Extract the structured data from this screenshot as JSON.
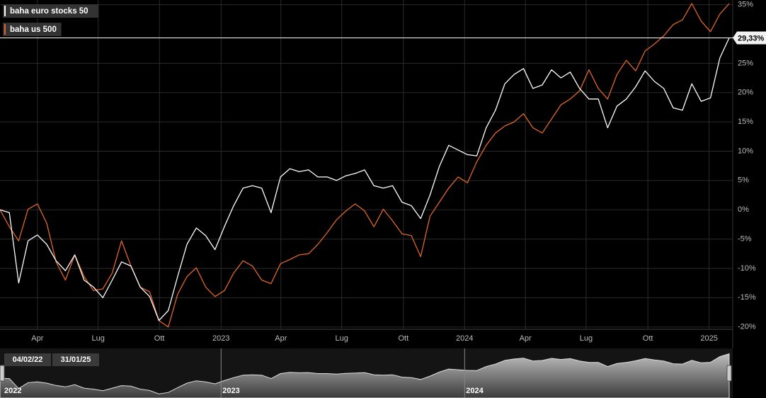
{
  "chart_data": {
    "type": "line",
    "legend_position": "upper left",
    "grid": true,
    "series": [
      {
        "name": "baha euro stocks 50",
        "color": "#ffffff",
        "values": [
          0,
          -0.5,
          -12.5,
          -5.3,
          -4.3,
          -5.9,
          -8.7,
          -10.4,
          -7.7,
          -12,
          -13.2,
          -15,
          -12,
          -8.9,
          -9.6,
          -13.2,
          -14.8,
          -18.9,
          -17.2,
          -11.4,
          -5.9,
          -3.1,
          -4.4,
          -6.8,
          -2.9,
          0.7,
          3.7,
          4.1,
          3.7,
          -0.5,
          5.6,
          7,
          6.5,
          6.8,
          5.6,
          5.6,
          5,
          5.8,
          6.2,
          6.8,
          4.1,
          3.7,
          4.1,
          1.3,
          0.7,
          -1.5,
          2.5,
          7.4,
          11,
          10.2,
          9.4,
          9.2,
          14,
          17,
          21.5,
          23.1,
          24.1,
          20.7,
          21.3,
          23.9,
          22.5,
          23.5,
          20.7,
          18.9,
          18.9,
          14,
          17.7,
          18.9,
          21,
          23.7,
          21.9,
          20.7,
          17.4,
          17,
          21.5,
          18.5,
          19.1,
          25.9,
          29.33
        ]
      },
      {
        "name": "baha us 500",
        "color": "#e0662a",
        "values": [
          0,
          -2.9,
          -5.3,
          0.1,
          1,
          -2.3,
          -8.9,
          -12,
          -7.7,
          -11.4,
          -13.8,
          -13.5,
          -10.8,
          -5.3,
          -9.6,
          -13.2,
          -14,
          -18.9,
          -20,
          -14.4,
          -11.4,
          -9.9,
          -13.2,
          -14.8,
          -13.8,
          -10.8,
          -8.7,
          -9.6,
          -12,
          -12.6,
          -9.2,
          -8.5,
          -7.7,
          -7.5,
          -5.9,
          -3.9,
          -1.7,
          -0.2,
          1,
          -0.2,
          -2.9,
          0.1,
          -1.9,
          -4.1,
          -4.4,
          -8,
          -1.1,
          1.3,
          3.7,
          5.6,
          4.6,
          8.2,
          11,
          13.1,
          14.3,
          15,
          16.4,
          14,
          13.1,
          15.5,
          17.9,
          18.9,
          20.3,
          23.9,
          20.7,
          18.9,
          23.1,
          25.5,
          23.7,
          27.1,
          28.3,
          29.7,
          31.6,
          32.4,
          35.2,
          32.2,
          30.4,
          33.4,
          35.2
        ]
      }
    ],
    "xlim": [
      0,
      78
    ],
    "xticks": [
      {
        "value": 4,
        "label": "Apr"
      },
      {
        "value": 10.5,
        "label": "Lug"
      },
      {
        "value": 17.05,
        "label": "Ott"
      },
      {
        "value": 23.65,
        "label": "2023"
      },
      {
        "value": 30.05,
        "label": "Apr"
      },
      {
        "value": 36.55,
        "label": "Lug"
      },
      {
        "value": 43.15,
        "label": "Ott"
      },
      {
        "value": 49.7,
        "label": "2024"
      },
      {
        "value": 56.2,
        "label": "Apr"
      },
      {
        "value": 62.7,
        "label": "Lug"
      },
      {
        "value": 69.3,
        "label": "Ott"
      },
      {
        "value": 75.85,
        "label": "2025"
      }
    ],
    "ylim": [
      -20.4,
      35.8
    ],
    "yticks": [
      {
        "value": -20,
        "label": "-20%"
      },
      {
        "value": -15,
        "label": "-15%"
      },
      {
        "value": -10,
        "label": "-10%"
      },
      {
        "value": -5,
        "label": "-5%"
      },
      {
        "value": 0,
        "label": "0%"
      },
      {
        "value": 5,
        "label": "5%"
      },
      {
        "value": 10,
        "label": "10%"
      },
      {
        "value": 15,
        "label": "15%"
      },
      {
        "value": 20,
        "label": "20%"
      },
      {
        "value": 25,
        "label": "25%"
      },
      {
        "value": 35,
        "label": "35%"
      }
    ],
    "annotations": [
      {
        "value": 29.33,
        "label": "29,33%"
      }
    ],
    "navigator": {
      "start_label": "04/02/22",
      "end_label": "31/01/25",
      "year_labels": [
        "2022",
        "2023",
        "2024"
      ]
    }
  }
}
